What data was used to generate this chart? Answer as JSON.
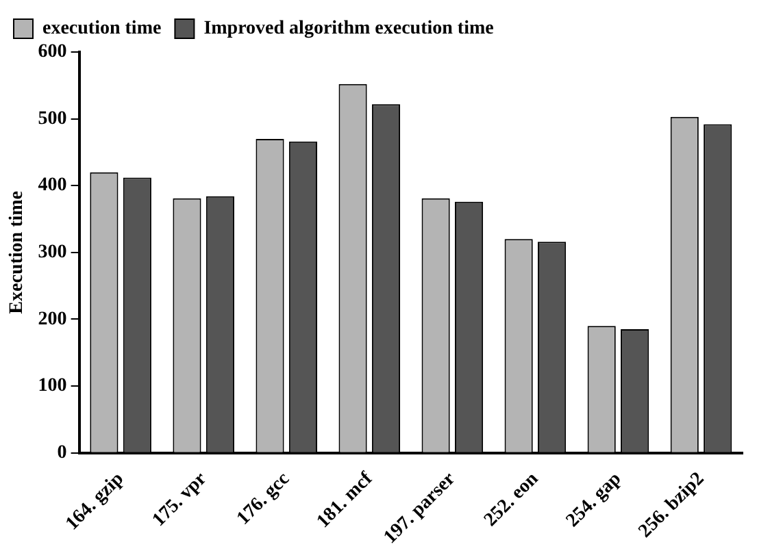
{
  "chart_data": {
    "type": "bar",
    "ylabel": "Execution time",
    "categories": [
      "164. gzip",
      "175. vpr",
      "176. gcc",
      "181. mcf",
      "197. parser",
      "252. eon",
      "254. gap",
      "256. bzip2"
    ],
    "series": [
      {
        "name": "execution time",
        "color": "#b4b4b4",
        "values": [
          420,
          381,
          470,
          552,
          381,
          320,
          190,
          503
        ]
      },
      {
        "name": "Improved algorithm execution time",
        "color": "#555555",
        "values": [
          412,
          384,
          466,
          522,
          376,
          316,
          185,
          492
        ]
      }
    ],
    "ylim": [
      0,
      600
    ],
    "yticks": [
      0,
      100,
      200,
      300,
      400,
      500,
      600
    ],
    "grid": false,
    "legend": "top left"
  }
}
